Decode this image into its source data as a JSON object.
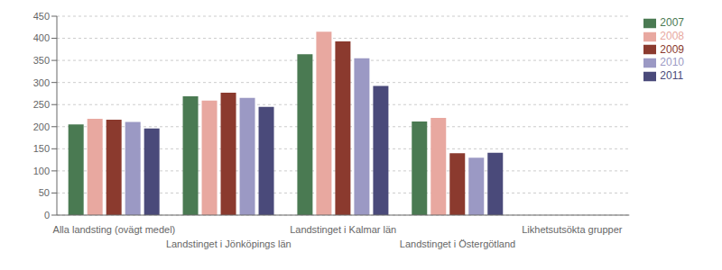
{
  "chart_data": {
    "type": "bar",
    "categories": [
      "Alla landsting (ovägt medel)",
      "Landstinget i Jönköpings län",
      "Landstinget i Kalmar län",
      "Landstinget i Östergötland",
      "Likhetsutsökta grupper"
    ],
    "series": [
      {
        "name": "2007",
        "color": "#4a7a52",
        "values": [
          205,
          269,
          364,
          212,
          0
        ]
      },
      {
        "name": "2008",
        "color": "#e8a8a0",
        "values": [
          218,
          259,
          415,
          220,
          0
        ]
      },
      {
        "name": "2009",
        "color": "#8b3a2e",
        "values": [
          216,
          277,
          393,
          140,
          0
        ]
      },
      {
        "name": "2010",
        "color": "#9b99c4",
        "values": [
          211,
          265,
          355,
          130,
          0
        ]
      },
      {
        "name": "2011",
        "color": "#4a4a7a",
        "values": [
          196,
          245,
          292,
          141,
          0
        ]
      }
    ],
    "ylim": [
      0,
      450
    ],
    "yticks": [
      0,
      50,
      100,
      150,
      200,
      250,
      300,
      350,
      400,
      450
    ],
    "grid": true,
    "legend": "upper right"
  }
}
